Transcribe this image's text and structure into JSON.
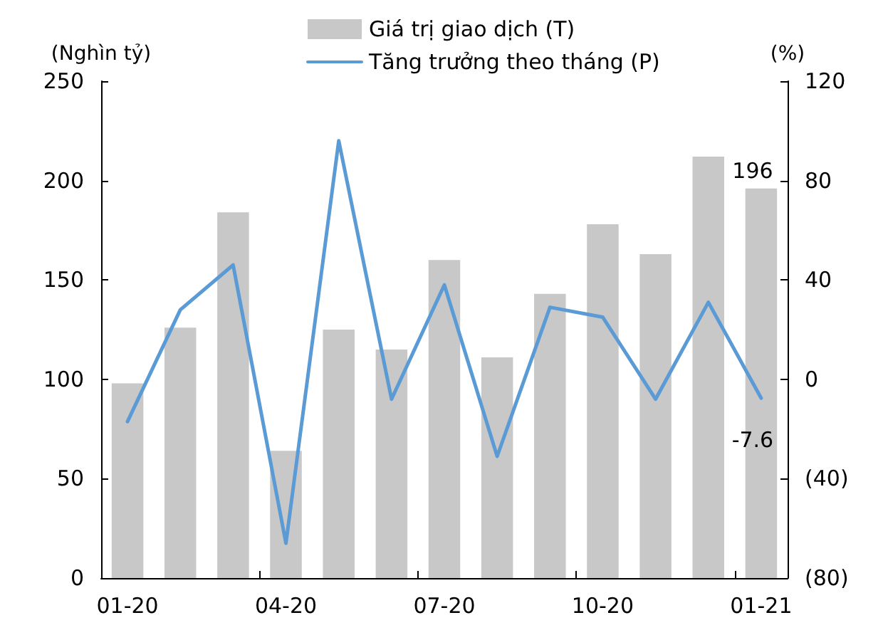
{
  "chart_data": {
    "type": "bar",
    "categories": [
      "01-20",
      null,
      null,
      "04-20",
      null,
      null,
      "07-20",
      null,
      null,
      "10-20",
      null,
      null,
      "01-21"
    ],
    "series": [
      {
        "name": "Giá trị giao dịch (T)",
        "color": "#c8c8c8",
        "values": [
          98,
          126,
          184,
          64,
          125,
          115,
          160,
          111,
          143,
          178,
          163,
          212,
          196
        ],
        "value_labels": [
          null,
          null,
          null,
          null,
          null,
          null,
          null,
          null,
          null,
          null,
          null,
          null,
          "196"
        ]
      },
      {
        "name": "Tăng trưởng theo tháng (P)",
        "type": "line",
        "axis": "y2",
        "color": "#5b9bd5",
        "values": [
          -17,
          28,
          46,
          -66,
          96,
          -8,
          38,
          -31,
          29,
          25,
          -8,
          31,
          -7.6
        ],
        "value_labels": [
          null,
          null,
          null,
          null,
          null,
          null,
          null,
          null,
          null,
          null,
          null,
          null,
          "-7.6"
        ]
      }
    ],
    "ylabel": "(Nghìn tỷ)",
    "y2label": "(%)",
    "ylim": [
      0,
      250
    ],
    "yticks": [
      0,
      50,
      100,
      150,
      200,
      250
    ],
    "y2lim": [
      -80,
      120
    ],
    "y2ticks": [
      {
        "value": -80,
        "label": "(80)"
      },
      {
        "value": -40,
        "label": "(40)"
      },
      0,
      40,
      80,
      120
    ],
    "legend": "top",
    "grid": false,
    "marker": "none"
  }
}
